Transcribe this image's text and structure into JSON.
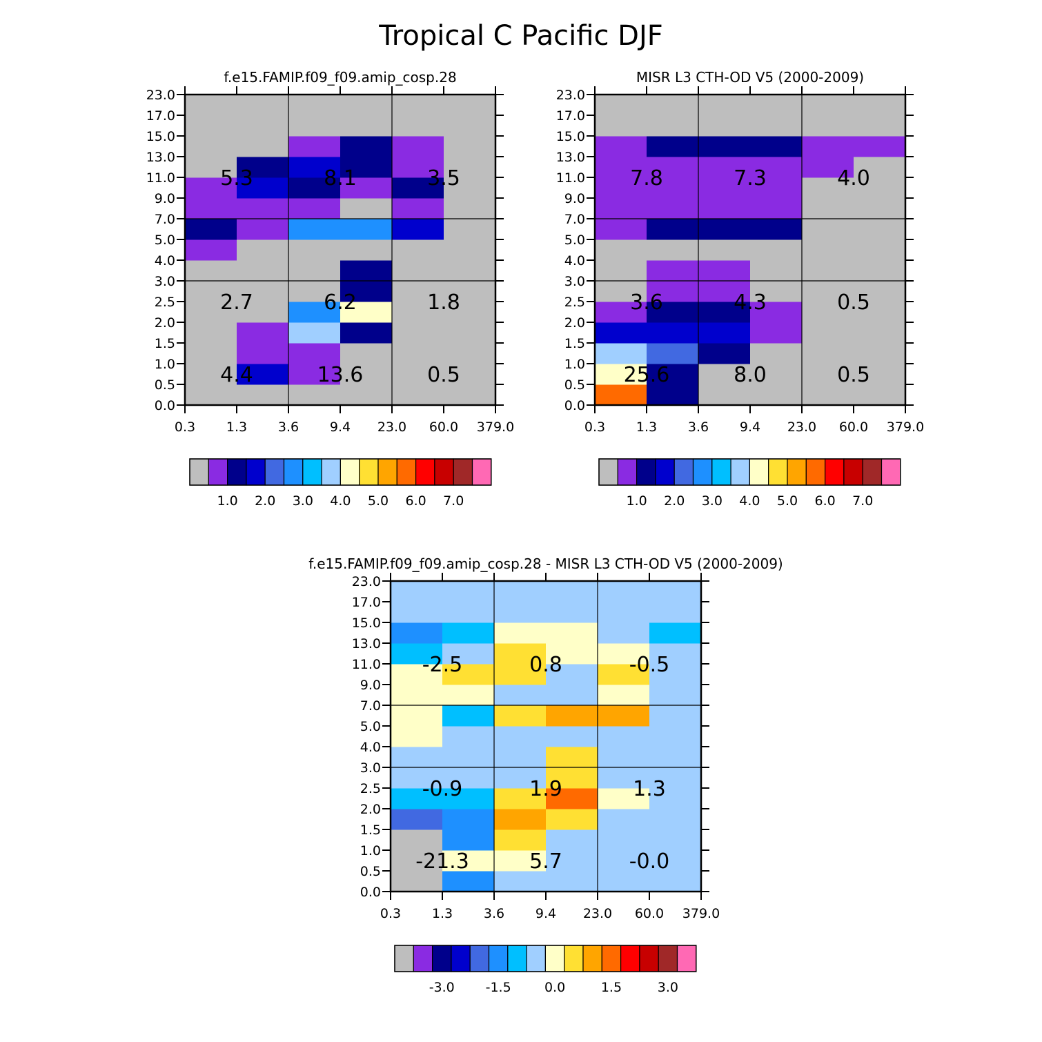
{
  "figure": {
    "title": "Tropical C Pacific DJF"
  },
  "chart_data": [
    {
      "type": "heatmap",
      "id": "model",
      "title": "f.e15.FAMIP.f09_f09.amip_cosp.28",
      "x_tick_labels": [
        "0.3",
        "1.3",
        "3.6",
        "9.4",
        "23.0",
        "60.0",
        "379.0"
      ],
      "y_tick_labels": [
        "0.0",
        "0.5",
        "1.0",
        "1.5",
        "2.0",
        "2.5",
        "3.0",
        "4.0",
        "5.0",
        "7.0",
        "9.0",
        "11.0",
        "13.0",
        "15.0",
        "17.0",
        "23.0"
      ],
      "cells": [
        [
          4,
          4,
          4,
          4,
          4,
          4
        ],
        [
          4,
          4,
          4,
          4,
          4,
          4
        ],
        [
          4,
          5,
          4,
          4,
          4,
          4
        ],
        [
          4,
          5,
          5,
          4,
          4,
          4
        ],
        [
          4,
          4,
          4,
          4,
          4,
          4
        ],
        [
          4,
          4,
          4,
          4,
          4,
          4
        ],
        [
          4,
          4,
          4,
          4,
          4,
          4
        ],
        [
          4,
          4,
          4,
          4,
          4,
          4
        ],
        [
          4,
          4,
          4,
          4,
          4,
          4
        ],
        [
          4,
          4,
          4,
          4,
          4,
          4
        ],
        [
          4,
          4,
          4,
          4,
          4,
          4
        ],
        [
          4,
          4,
          4,
          4,
          4,
          4
        ],
        [
          4,
          4,
          4,
          4,
          4,
          4
        ],
        [
          4,
          4,
          4,
          4,
          4,
          4
        ],
        [
          4,
          4,
          4,
          4,
          4,
          4
        ]
      ],
      "cell_index_grid": [
        [
          0,
          0,
          0,
          0,
          0,
          0
        ],
        [
          0,
          3,
          1,
          0,
          0,
          0
        ],
        [
          0,
          1,
          1,
          0,
          0,
          0
        ],
        [
          0,
          1,
          7,
          2,
          0,
          0
        ],
        [
          0,
          0,
          5,
          8,
          0,
          0
        ],
        [
          0,
          0,
          0,
          2,
          0,
          0
        ],
        [
          0,
          0,
          0,
          2,
          0,
          0
        ],
        [
          1,
          0,
          0,
          0,
          0,
          0
        ],
        [
          2,
          1,
          5,
          5,
          3,
          0
        ],
        [
          1,
          1,
          1,
          0,
          1,
          0
        ],
        [
          1,
          3,
          2,
          1,
          2,
          0
        ],
        [
          0,
          2,
          3,
          2,
          1,
          0
        ],
        [
          0,
          0,
          1,
          2,
          1,
          0
        ],
        [
          0,
          0,
          0,
          0,
          0,
          0
        ],
        [
          0,
          0,
          0,
          0,
          0,
          0
        ]
      ],
      "group_values": [
        {
          "label": "4.4",
          "col": 0,
          "row": 0
        },
        {
          "label": "13.6",
          "col": 1,
          "row": 0
        },
        {
          "label": "0.5",
          "col": 2,
          "row": 0
        },
        {
          "label": "2.7",
          "col": 0,
          "row": 1
        },
        {
          "label": "6.2",
          "col": 1,
          "row": 1
        },
        {
          "label": "1.8",
          "col": 2,
          "row": 1
        },
        {
          "label": "5.3",
          "col": 0,
          "row": 2
        },
        {
          "label": "8.1",
          "col": 1,
          "row": 2
        },
        {
          "label": "3.5",
          "col": 2,
          "row": 2
        }
      ],
      "colorbar": {
        "labels": [
          "1.0",
          "2.0",
          "3.0",
          "4.0",
          "5.0",
          "6.0",
          "7.0"
        ],
        "colors": [
          "#bebebe",
          "#8a2be2",
          "#00008b",
          "#0000cd",
          "#4169e1",
          "#1e90ff",
          "#00bfff",
          "#a0cfff",
          "#ffffc8",
          "#ffe033",
          "#ffa500",
          "#ff6a00",
          "#ff0000",
          "#c80000",
          "#a02828",
          "#ff69b4"
        ]
      }
    },
    {
      "type": "heatmap",
      "id": "obs",
      "title": "MISR L3 CTH-OD V5 (2000-2009)",
      "x_tick_labels": [
        "0.3",
        "1.3",
        "3.6",
        "9.4",
        "23.0",
        "60.0",
        "379.0"
      ],
      "y_tick_labels": [
        "0.0",
        "0.5",
        "1.0",
        "1.5",
        "2.0",
        "2.5",
        "3.0",
        "4.0",
        "5.0",
        "7.0",
        "9.0",
        "11.0",
        "13.0",
        "15.0",
        "17.0",
        "23.0"
      ],
      "cell_index_grid": [
        [
          11,
          2,
          0,
          0,
          0,
          0
        ],
        [
          8,
          2,
          0,
          0,
          0,
          0
        ],
        [
          7,
          4,
          2,
          0,
          0,
          0
        ],
        [
          3,
          3,
          3,
          1,
          0,
          0
        ],
        [
          1,
          2,
          2,
          1,
          0,
          0
        ],
        [
          0,
          1,
          1,
          0,
          0,
          0
        ],
        [
          0,
          1,
          1,
          0,
          0,
          0
        ],
        [
          0,
          0,
          0,
          0,
          0,
          0
        ],
        [
          1,
          2,
          2,
          2,
          0,
          0
        ],
        [
          1,
          1,
          1,
          1,
          0,
          0
        ],
        [
          1,
          1,
          1,
          1,
          0,
          0
        ],
        [
          1,
          1,
          1,
          1,
          1,
          0
        ],
        [
          1,
          2,
          2,
          2,
          1,
          1
        ],
        [
          0,
          0,
          0,
          0,
          0,
          0
        ],
        [
          0,
          0,
          0,
          0,
          0,
          0
        ]
      ],
      "group_values": [
        {
          "label": "25.6",
          "col": 0,
          "row": 0
        },
        {
          "label": "8.0",
          "col": 1,
          "row": 0
        },
        {
          "label": "0.5",
          "col": 2,
          "row": 0
        },
        {
          "label": "3.6",
          "col": 0,
          "row": 1
        },
        {
          "label": "4.3",
          "col": 1,
          "row": 1
        },
        {
          "label": "0.5",
          "col": 2,
          "row": 1
        },
        {
          "label": "7.8",
          "col": 0,
          "row": 2
        },
        {
          "label": "7.3",
          "col": 1,
          "row": 2
        },
        {
          "label": "4.0",
          "col": 2,
          "row": 2
        }
      ],
      "colorbar": {
        "labels": [
          "1.0",
          "2.0",
          "3.0",
          "4.0",
          "5.0",
          "6.0",
          "7.0"
        ],
        "colors": [
          "#bebebe",
          "#8a2be2",
          "#00008b",
          "#0000cd",
          "#4169e1",
          "#1e90ff",
          "#00bfff",
          "#a0cfff",
          "#ffffc8",
          "#ffe033",
          "#ffa500",
          "#ff6a00",
          "#ff0000",
          "#c80000",
          "#a02828",
          "#ff69b4"
        ]
      }
    },
    {
      "type": "heatmap",
      "id": "diff",
      "title": "f.e15.FAMIP.f09_f09.amip_cosp.28 - MISR L3 CTH-OD V5 (2000-2009)",
      "x_tick_labels": [
        "0.3",
        "1.3",
        "3.6",
        "9.4",
        "23.0",
        "60.0",
        "379.0"
      ],
      "y_tick_labels": [
        "0.0",
        "0.5",
        "1.0",
        "1.5",
        "2.0",
        "2.5",
        "3.0",
        "4.0",
        "5.0",
        "7.0",
        "9.0",
        "11.0",
        "13.0",
        "15.0",
        "17.0",
        "23.0"
      ],
      "cell_index_grid": [
        [
          0,
          5,
          7,
          7,
          7,
          7
        ],
        [
          0,
          8,
          8,
          7,
          7,
          7
        ],
        [
          0,
          5,
          9,
          7,
          7,
          7
        ],
        [
          4,
          5,
          10,
          9,
          7,
          7
        ],
        [
          6,
          6,
          9,
          11,
          8,
          7
        ],
        [
          7,
          7,
          7,
          9,
          7,
          7
        ],
        [
          7,
          7,
          7,
          9,
          7,
          7
        ],
        [
          8,
          7,
          7,
          7,
          7,
          7
        ],
        [
          8,
          6,
          9,
          10,
          10,
          7
        ],
        [
          8,
          8,
          7,
          7,
          8,
          7
        ],
        [
          8,
          9,
          9,
          7,
          9,
          7
        ],
        [
          6,
          7,
          9,
          8,
          8,
          7
        ],
        [
          5,
          6,
          8,
          8,
          7,
          6
        ],
        [
          7,
          7,
          7,
          7,
          7,
          7
        ],
        [
          7,
          7,
          7,
          7,
          7,
          7
        ]
      ],
      "group_values": [
        {
          "label": "-21.3",
          "col": 0,
          "row": 0
        },
        {
          "label": "5.7",
          "col": 1,
          "row": 0
        },
        {
          "label": "-0.0",
          "col": 2,
          "row": 0
        },
        {
          "label": "-0.9",
          "col": 0,
          "row": 1
        },
        {
          "label": "1.9",
          "col": 1,
          "row": 1
        },
        {
          "label": "1.3",
          "col": 2,
          "row": 1
        },
        {
          "label": "-2.5",
          "col": 0,
          "row": 2
        },
        {
          "label": "0.8",
          "col": 1,
          "row": 2
        },
        {
          "label": "-0.5",
          "col": 2,
          "row": 2
        }
      ],
      "colorbar": {
        "labels": [
          "-3.0",
          "-1.5",
          "0.0",
          "1.5",
          "3.0"
        ],
        "colors": [
          "#bebebe",
          "#8a2be2",
          "#00008b",
          "#0000cd",
          "#4169e1",
          "#1e90ff",
          "#00bfff",
          "#a0cfff",
          "#ffffc8",
          "#ffe033",
          "#ffa500",
          "#ff6a00",
          "#ff0000",
          "#c80000",
          "#a02828",
          "#ff69b4"
        ]
      }
    }
  ]
}
